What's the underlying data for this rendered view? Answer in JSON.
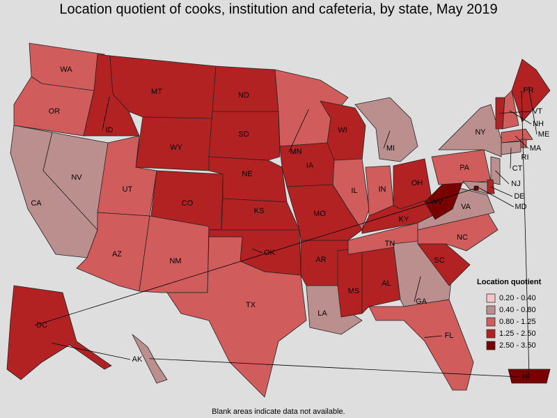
{
  "title": "Location quotient of cooks, institution and cafeteria, by state, May 2019",
  "states": [
    {
      "label": "WA",
      "color": "#d15c5c"
    },
    {
      "label": "OR",
      "color": "#d15c5c"
    },
    {
      "label": "CA",
      "color": "#bc8f8f"
    },
    {
      "label": "NV",
      "color": "#bc8f8f"
    },
    {
      "label": "ID",
      "color": "#b22222"
    },
    {
      "label": "MT",
      "color": "#b22222"
    },
    {
      "label": "WY",
      "color": "#b22222"
    },
    {
      "label": "UT",
      "color": "#d15c5c"
    },
    {
      "label": "CO",
      "color": "#b22222"
    },
    {
      "label": "AZ",
      "color": "#d15c5c"
    },
    {
      "label": "NM",
      "color": "#d15c5c"
    },
    {
      "label": "ND",
      "color": "#b22222"
    },
    {
      "label": "SD",
      "color": "#b22222"
    },
    {
      "label": "NE",
      "color": "#b22222"
    },
    {
      "label": "KS",
      "color": "#b22222"
    },
    {
      "label": "OK",
      "color": "#b22222"
    },
    {
      "label": "TX",
      "color": "#d15c5c"
    },
    {
      "label": "MN",
      "color": "#d15c5c"
    },
    {
      "label": "IA",
      "color": "#b22222"
    },
    {
      "label": "MO",
      "color": "#b22222"
    },
    {
      "label": "AR",
      "color": "#b22222"
    },
    {
      "label": "LA",
      "color": "#bc8f8f"
    },
    {
      "label": "MS",
      "color": "#b22222"
    },
    {
      "label": "AL",
      "color": "#b22222"
    },
    {
      "label": "WI",
      "color": "#b22222"
    },
    {
      "label": "IL",
      "color": "#d15c5c"
    },
    {
      "label": "MI",
      "color": "#bc8f8f"
    },
    {
      "label": "IN",
      "color": "#d15c5c"
    },
    {
      "label": "OH",
      "color": "#b22222"
    },
    {
      "label": "KY",
      "color": "#b22222"
    },
    {
      "label": "TN",
      "color": "#d15c5c"
    },
    {
      "label": "GA",
      "color": "#bc8f8f"
    },
    {
      "label": "FL",
      "color": "#d15c5c"
    },
    {
      "label": "SC",
      "color": "#b22222"
    },
    {
      "label": "NC",
      "color": "#d15c5c"
    },
    {
      "label": "VA",
      "color": "#bc8f8f"
    },
    {
      "label": "WV",
      "color": "#7a0000"
    },
    {
      "label": "PA",
      "color": "#d15c5c"
    },
    {
      "label": "NY",
      "color": "#bc8f8f"
    },
    {
      "label": "VT",
      "color": "#b22222"
    },
    {
      "label": "NH",
      "color": "#d15c5c"
    },
    {
      "label": "ME",
      "color": "#b22222"
    },
    {
      "label": "MA",
      "color": "#d15c5c"
    },
    {
      "label": "RI",
      "color": "#d15c5c"
    },
    {
      "label": "CT",
      "color": "#bc8f8f"
    },
    {
      "label": "NJ",
      "color": "#bc8f8f"
    },
    {
      "label": "DE",
      "color": "#b22222"
    },
    {
      "label": "MD",
      "color": "#bc8f8f"
    },
    {
      "label": "DC",
      "color": "#7a0000"
    },
    {
      "label": "AK",
      "color": "#b22222"
    },
    {
      "label": "HI",
      "color": "#bc8f8f"
    },
    {
      "label": "PR",
      "color": "#7a0000"
    }
  ],
  "legend": {
    "title": "Location quotient",
    "items": [
      {
        "label": "0.20 - 0.40",
        "color": "#f7c4c8"
      },
      {
        "label": "0.40 - 0.80",
        "color": "#bc8f8f"
      },
      {
        "label": "0.80 - 1.25",
        "color": "#d15c5c"
      },
      {
        "label": "1.25 - 2.50",
        "color": "#b22222"
      },
      {
        "label": "2.50 - 3.50",
        "color": "#7a0000"
      }
    ]
  },
  "footnote": "Blank areas indicate data not available."
}
